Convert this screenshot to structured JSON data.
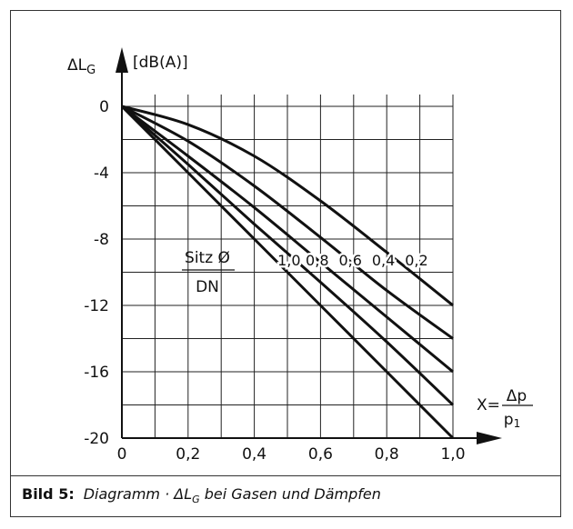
{
  "caption": {
    "label": "Bild 5:",
    "text": "Diagramm · ΔL",
    "text_sub": "G",
    "text_rest": " bei Gasen und Dämpfen"
  },
  "chart_data": {
    "type": "line",
    "y_axis": {
      "symbol": "ΔL",
      "symbol_sub": "G",
      "unit": "[dB(A)]"
    },
    "x_axis": {
      "prefix": "X=",
      "numerator": "Δp",
      "denominator": "p",
      "denominator_sub": "1"
    },
    "xlim": [
      0,
      1.0
    ],
    "ylim": [
      -20,
      0
    ],
    "x_ticks": [
      "0",
      "0,2",
      "0,4",
      "0,6",
      "0,8",
      "1,0"
    ],
    "y_ticks": [
      "0",
      "-4",
      "-8",
      "-12",
      "-16",
      "-20"
    ],
    "grid": true,
    "legend_title": {
      "numerator": "Sitz Ø",
      "denominator": "DN"
    },
    "series": [
      {
        "name": "1,0",
        "points": [
          [
            0,
            0
          ],
          [
            0.2,
            -4
          ],
          [
            0.4,
            -8
          ],
          [
            0.6,
            -12
          ],
          [
            0.8,
            -16
          ],
          [
            1.0,
            -20
          ]
        ]
      },
      {
        "name": "0,8",
        "points": [
          [
            0,
            0
          ],
          [
            0.2,
            -3.5
          ],
          [
            0.4,
            -7.1
          ],
          [
            0.6,
            -10.6
          ],
          [
            0.8,
            -14.2
          ],
          [
            1.0,
            -18
          ]
        ]
      },
      {
        "name": "0,6",
        "points": [
          [
            0,
            0
          ],
          [
            0.2,
            -3
          ],
          [
            0.4,
            -6.1
          ],
          [
            0.6,
            -9.4
          ],
          [
            0.8,
            -12.7
          ],
          [
            1.0,
            -16
          ]
        ]
      },
      {
        "name": "0,4",
        "points": [
          [
            0,
            0
          ],
          [
            0.2,
            -2.1
          ],
          [
            0.4,
            -4.8
          ],
          [
            0.6,
            -7.9
          ],
          [
            0.8,
            -11.1
          ],
          [
            1.0,
            -14
          ]
        ]
      },
      {
        "name": "0,2",
        "points": [
          [
            0,
            0
          ],
          [
            0.2,
            -1.1
          ],
          [
            0.4,
            -3
          ],
          [
            0.6,
            -5.7
          ],
          [
            0.8,
            -8.8
          ],
          [
            1.0,
            -12
          ]
        ]
      }
    ]
  }
}
